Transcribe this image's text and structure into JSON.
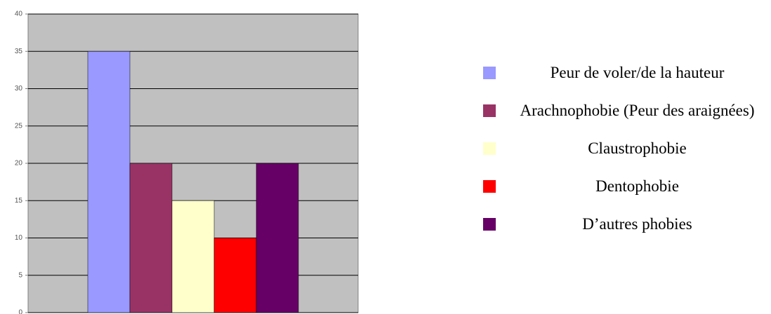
{
  "chart_data": {
    "type": "bar",
    "categories": [
      null
    ],
    "series": [
      {
        "name": "Peur de voler/de la hauteur",
        "color": "#9999ff",
        "values": [
          35
        ]
      },
      {
        "name": "Arachnophobie (Peur des araignées)",
        "color": "#993366",
        "values": [
          20
        ]
      },
      {
        "name": "Claustrophobie",
        "color": "#ffffcc",
        "values": [
          15
        ]
      },
      {
        "name": "Dentophobie",
        "color": "#ff0000",
        "values": [
          10
        ]
      },
      {
        "name": "D’autres phobies",
        "color": "#660066",
        "values": [
          20
        ]
      }
    ],
    "ylim": [
      0,
      40
    ],
    "yticks": [
      0,
      5,
      10,
      15,
      20,
      25,
      30,
      35,
      40
    ],
    "grid": true,
    "legend": "right"
  }
}
